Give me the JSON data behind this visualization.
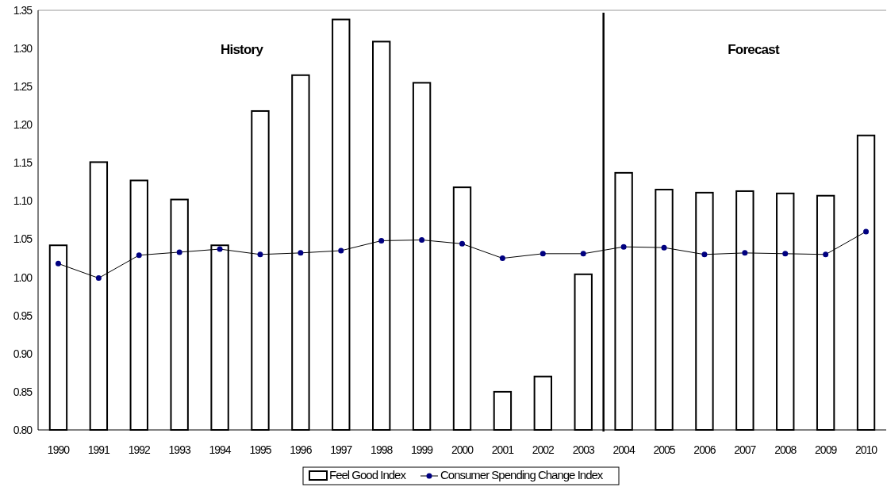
{
  "chart_data": {
    "type": "bar",
    "x": [
      1990,
      1991,
      1992,
      1993,
      1994,
      1995,
      1996,
      1997,
      1998,
      1999,
      2000,
      2001,
      2002,
      2003,
      2004,
      2005,
      2006,
      2007,
      2008,
      2009,
      2010
    ],
    "series": [
      {
        "name": "Feel Good Index",
        "color": "#ffffff",
        "values": [
          1.042,
          1.151,
          1.127,
          1.102,
          1.042,
          1.218,
          1.265,
          1.338,
          1.309,
          1.255,
          1.118,
          0.85,
          0.87,
          1.004,
          1.137,
          1.115,
          1.111,
          1.113,
          1.11,
          1.107,
          1.186
        ]
      },
      {
        "name": "Consumer Spending Change Index",
        "type": "line",
        "color": "#000080",
        "marker": "circle",
        "values": [
          1.018,
          0.999,
          1.029,
          1.033,
          1.037,
          1.03,
          1.032,
          1.035,
          1.048,
          1.049,
          1.044,
          1.025,
          1.031,
          1.031,
          1.04,
          1.039,
          1.03,
          1.032,
          1.031,
          1.03,
          1.06
        ]
      }
    ],
    "xlim": [
      1989.5,
      2010.5
    ],
    "xticks": [
      1990,
      1991,
      1992,
      1993,
      1994,
      1995,
      1996,
      1997,
      1998,
      1999,
      2000,
      2001,
      2002,
      2003,
      2004,
      2005,
      2006,
      2007,
      2008,
      2009,
      2010
    ],
    "ylim": [
      0.8,
      1.35
    ],
    "yticks": [
      {
        "value": 0.8,
        "label": "0.80"
      },
      {
        "value": 0.85,
        "label": "0.85"
      },
      {
        "value": 0.9,
        "label": "0.90"
      },
      {
        "value": 0.95,
        "label": "0.95"
      },
      {
        "value": 1.0,
        "label": "1.00"
      },
      {
        "value": 1.05,
        "label": "1.05"
      },
      {
        "value": 1.1,
        "label": "1.10"
      },
      {
        "value": 1.15,
        "label": "1.15"
      },
      {
        "value": 1.2,
        "label": "1.20"
      },
      {
        "value": 1.25,
        "label": "1.25"
      },
      {
        "value": 1.3,
        "label": "1.30"
      },
      {
        "value": 1.35,
        "label": "1.35"
      }
    ],
    "ref_lines": [
      {
        "axis": "x",
        "value": 2003.5,
        "color": "#000000"
      }
    ],
    "annotations": [
      "History",
      "Forecast"
    ],
    "legend": "bottom"
  }
}
